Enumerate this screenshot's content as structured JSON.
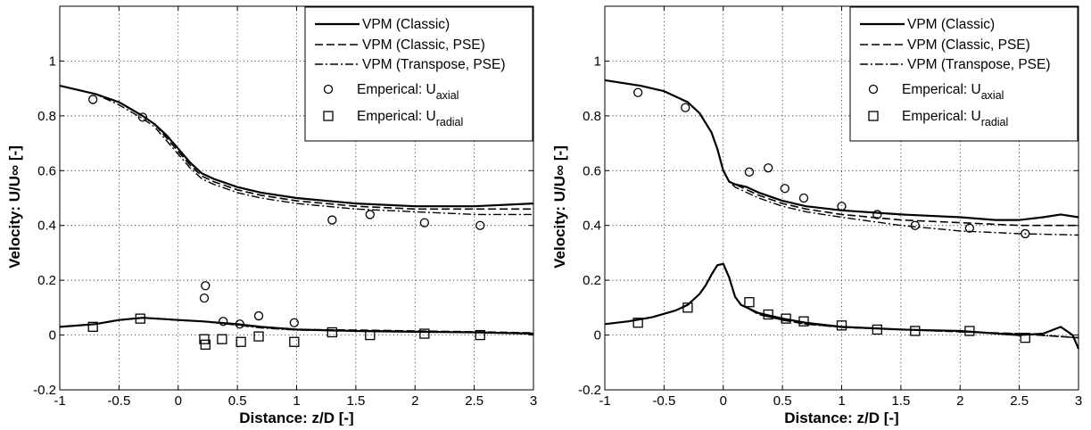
{
  "chart_data": [
    {
      "type": "line",
      "xlabel": "Distance: z/D [-]",
      "ylabel": "Velocity: U/U∞ [-]",
      "xlim": [
        -1,
        3
      ],
      "ylim": [
        -0.2,
        1.2
      ],
      "xticks": [
        -1,
        -0.5,
        0,
        0.5,
        1,
        1.5,
        2,
        2.5,
        3
      ],
      "xtick_labels": [
        "-1",
        "-0.5",
        "0",
        "0.5",
        "1",
        "1.5",
        "2",
        "2.5",
        "3"
      ],
      "yticks": [
        -0.2,
        0,
        0.2,
        0.4,
        0.6,
        0.8,
        1
      ],
      "ytick_labels": [
        "-0.2",
        "0",
        "0.2",
        "0.4",
        "0.6",
        "0.8",
        "1"
      ],
      "grid": true,
      "legend_position": "top-right",
      "legend": [
        {
          "label": "VPM (Classic)",
          "style": "solid"
        },
        {
          "label": "VPM (Classic, PSE)",
          "style": "dashed"
        },
        {
          "label": "VPM (Transpose, PSE)",
          "style": "dashdot"
        },
        {
          "label": "Emperical: U",
          "sub": "axial",
          "style": "circle"
        },
        {
          "label": "Emperical: U",
          "sub": "radial",
          "style": "square"
        }
      ],
      "series": [
        {
          "style": "solid",
          "x": [
            -1,
            -0.7,
            -0.5,
            -0.3,
            -0.2,
            -0.1,
            0,
            0.1,
            0.2,
            0.3,
            0.5,
            0.7,
            1,
            1.5,
            2,
            2.5,
            3
          ],
          "y": [
            0.91,
            0.88,
            0.85,
            0.8,
            0.77,
            0.73,
            0.68,
            0.63,
            0.59,
            0.57,
            0.54,
            0.52,
            0.5,
            0.48,
            0.47,
            0.47,
            0.48
          ]
        },
        {
          "style": "dashed",
          "x": [
            -1,
            -0.7,
            -0.5,
            -0.3,
            -0.2,
            -0.1,
            0,
            0.1,
            0.2,
            0.3,
            0.5,
            0.7,
            1,
            1.5,
            2,
            2.5,
            3
          ],
          "y": [
            0.91,
            0.88,
            0.85,
            0.8,
            0.77,
            0.72,
            0.67,
            0.62,
            0.58,
            0.56,
            0.53,
            0.51,
            0.49,
            0.47,
            0.46,
            0.46,
            0.46
          ]
        },
        {
          "style": "dashdot",
          "x": [
            -1,
            -0.7,
            -0.5,
            -0.3,
            -0.2,
            -0.1,
            0,
            0.1,
            0.2,
            0.3,
            0.5,
            0.7,
            1,
            1.5,
            2,
            2.5,
            3
          ],
          "y": [
            0.91,
            0.88,
            0.84,
            0.79,
            0.76,
            0.71,
            0.66,
            0.61,
            0.57,
            0.55,
            0.52,
            0.5,
            0.48,
            0.46,
            0.45,
            0.44,
            0.44
          ]
        },
        {
          "style": "solid",
          "x": [
            -1,
            -0.7,
            -0.5,
            -0.3,
            -0.1,
            0,
            0.2,
            0.5,
            0.7,
            1,
            1.5,
            2,
            2.5,
            3
          ],
          "y": [
            0.03,
            0.04,
            0.055,
            0.063,
            0.058,
            0.055,
            0.05,
            0.04,
            0.03,
            0.02,
            0.015,
            0.012,
            0.01,
            0.005
          ]
        },
        {
          "style": "dashed",
          "x": [
            -1,
            -0.7,
            -0.5,
            -0.3,
            -0.1,
            0,
            0.2,
            0.5,
            0.7,
            1,
            1.5,
            2,
            2.5,
            3
          ],
          "y": [
            0.03,
            0.04,
            0.055,
            0.063,
            0.058,
            0.055,
            0.05,
            0.038,
            0.028,
            0.02,
            0.018,
            0.015,
            0.012,
            0.008
          ]
        },
        {
          "style": "dashdot",
          "x": [
            -1,
            -0.7,
            -0.5,
            -0.3,
            -0.1,
            0,
            0.2,
            0.5,
            0.7,
            1,
            1.5,
            2,
            2.5,
            3
          ],
          "y": [
            0.03,
            0.04,
            0.054,
            0.062,
            0.057,
            0.054,
            0.05,
            0.036,
            0.026,
            0.018,
            0.016,
            0.014,
            0.01,
            0.006
          ]
        },
        {
          "style": "circle",
          "x": [
            -0.72,
            -0.3,
            0.22,
            0.23,
            0.38,
            0.52,
            0.68,
            0.98,
            1.3,
            1.62,
            2.08,
            2.55
          ],
          "y": [
            0.86,
            0.795,
            0.135,
            0.18,
            0.05,
            0.04,
            0.07,
            0.045,
            0.42,
            0.44,
            0.41,
            0.4
          ]
        },
        {
          "style": "square",
          "x": [
            -0.72,
            -0.32,
            0.22,
            0.23,
            0.37,
            0.53,
            0.68,
            0.98,
            1.3,
            1.62,
            2.08,
            2.55
          ],
          "y": [
            0.03,
            0.06,
            -0.015,
            -0.035,
            -0.015,
            -0.025,
            -0.005,
            -0.025,
            0.01,
            0.0,
            0.005,
            0.0
          ]
        }
      ]
    },
    {
      "type": "line",
      "xlabel": "Distance: z/D [-]",
      "ylabel": "Velocity: U/U∞ [-]",
      "xlim": [
        -1,
        3
      ],
      "ylim": [
        -0.2,
        1.2
      ],
      "xticks": [
        -1,
        -0.5,
        0,
        0.5,
        1,
        1.5,
        2,
        2.5,
        3
      ],
      "xtick_labels": [
        "-1",
        "-0.5",
        "0",
        "0.5",
        "1",
        "1.5",
        "2",
        "2.5",
        "3"
      ],
      "yticks": [
        -0.2,
        0,
        0.2,
        0.4,
        0.6,
        0.8,
        1
      ],
      "ytick_labels": [
        "-0.2",
        "0",
        "0.2",
        "0.4",
        "0.6",
        "0.8",
        "1"
      ],
      "grid": true,
      "legend_position": "top-right",
      "legend": [
        {
          "label": "VPM (Classic)",
          "style": "solid"
        },
        {
          "label": "VPM (Classic, PSE)",
          "style": "dashed"
        },
        {
          "label": "VPM (Transpose, PSE)",
          "style": "dashdot"
        },
        {
          "label": "Emperical: U",
          "sub": "axial",
          "style": "circle"
        },
        {
          "label": "Emperical: U",
          "sub": "radial",
          "style": "square"
        }
      ],
      "series": [
        {
          "style": "solid",
          "x": [
            -1,
            -0.7,
            -0.5,
            -0.3,
            -0.2,
            -0.1,
            -0.05,
            0,
            0.05,
            0.1,
            0.2,
            0.3,
            0.5,
            0.7,
            1,
            1.5,
            2,
            2.3,
            2.5,
            2.7,
            2.85,
            3
          ],
          "y": [
            0.93,
            0.91,
            0.89,
            0.85,
            0.81,
            0.74,
            0.68,
            0.6,
            0.56,
            0.55,
            0.54,
            0.52,
            0.49,
            0.47,
            0.455,
            0.44,
            0.43,
            0.42,
            0.42,
            0.43,
            0.44,
            0.43
          ]
        },
        {
          "style": "dashed",
          "x": [
            -1,
            -0.7,
            -0.5,
            -0.3,
            -0.2,
            -0.1,
            -0.05,
            0,
            0.05,
            0.1,
            0.2,
            0.3,
            0.5,
            0.7,
            1,
            1.5,
            2,
            2.5,
            3
          ],
          "y": [
            0.93,
            0.91,
            0.89,
            0.85,
            0.81,
            0.74,
            0.68,
            0.6,
            0.56,
            0.55,
            0.53,
            0.51,
            0.48,
            0.46,
            0.44,
            0.42,
            0.41,
            0.4,
            0.4
          ]
        },
        {
          "style": "dashdot",
          "x": [
            -1,
            -0.7,
            -0.5,
            -0.3,
            -0.2,
            -0.1,
            -0.05,
            0,
            0.05,
            0.1,
            0.2,
            0.3,
            0.5,
            0.7,
            1,
            1.5,
            2,
            2.5,
            3
          ],
          "y": [
            0.93,
            0.91,
            0.89,
            0.85,
            0.81,
            0.74,
            0.68,
            0.6,
            0.56,
            0.54,
            0.52,
            0.5,
            0.47,
            0.45,
            0.43,
            0.4,
            0.38,
            0.37,
            0.365
          ]
        },
        {
          "style": "solid",
          "x": [
            -1,
            -0.8,
            -0.6,
            -0.4,
            -0.3,
            -0.2,
            -0.15,
            -0.1,
            -0.05,
            0,
            0.05,
            0.1,
            0.15,
            0.2,
            0.3,
            0.5,
            0.7,
            1,
            1.5,
            2,
            2.5,
            2.7,
            2.85,
            2.95,
            3
          ],
          "y": [
            0.04,
            0.05,
            0.065,
            0.09,
            0.11,
            0.15,
            0.18,
            0.22,
            0.255,
            0.26,
            0.21,
            0.14,
            0.11,
            0.1,
            0.08,
            0.06,
            0.045,
            0.03,
            0.02,
            0.015,
            0.0,
            0.005,
            0.03,
            0.0,
            -0.05
          ]
        },
        {
          "style": "dashed",
          "x": [
            -1,
            -0.8,
            -0.6,
            -0.4,
            -0.3,
            -0.2,
            -0.15,
            -0.1,
            -0.05,
            0,
            0.05,
            0.1,
            0.15,
            0.2,
            0.3,
            0.5,
            0.7,
            1,
            1.5,
            2,
            2.5,
            3
          ],
          "y": [
            0.04,
            0.05,
            0.065,
            0.09,
            0.11,
            0.15,
            0.18,
            0.22,
            0.255,
            0.26,
            0.21,
            0.14,
            0.11,
            0.1,
            0.075,
            0.055,
            0.04,
            0.03,
            0.02,
            0.012,
            0.005,
            -0.01
          ]
        },
        {
          "style": "dashdot",
          "x": [
            -1,
            -0.8,
            -0.6,
            -0.4,
            -0.3,
            -0.2,
            -0.15,
            -0.1,
            -0.05,
            0,
            0.05,
            0.1,
            0.15,
            0.2,
            0.3,
            0.5,
            0.7,
            1,
            1.5,
            2,
            2.5,
            3
          ],
          "y": [
            0.04,
            0.05,
            0.065,
            0.09,
            0.11,
            0.15,
            0.18,
            0.22,
            0.255,
            0.26,
            0.21,
            0.14,
            0.11,
            0.1,
            0.075,
            0.055,
            0.04,
            0.028,
            0.02,
            0.012,
            0.004,
            -0.01
          ]
        },
        {
          "style": "circle",
          "x": [
            -0.72,
            -0.32,
            0.22,
            0.38,
            0.52,
            0.68,
            1.0,
            1.3,
            1.62,
            2.08,
            2.55
          ],
          "y": [
            0.885,
            0.83,
            0.595,
            0.61,
            0.535,
            0.5,
            0.47,
            0.44,
            0.4,
            0.39,
            0.37
          ]
        },
        {
          "style": "square",
          "x": [
            -0.72,
            -0.3,
            0.22,
            0.38,
            0.53,
            0.68,
            1.0,
            1.3,
            1.62,
            2.08,
            2.55
          ],
          "y": [
            0.045,
            0.1,
            0.12,
            0.075,
            0.06,
            0.05,
            0.035,
            0.02,
            0.015,
            0.015,
            -0.01
          ]
        }
      ]
    }
  ]
}
